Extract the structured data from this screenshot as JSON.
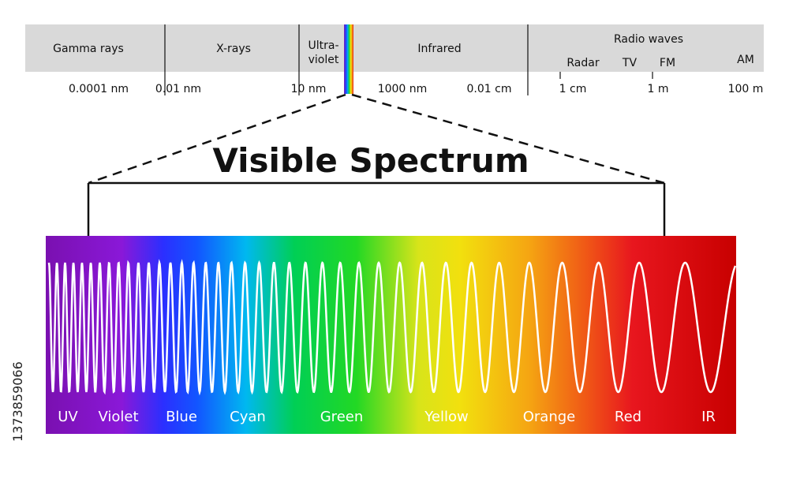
{
  "title": "Visible Spectrum",
  "side_id": "1373859066",
  "regions": [
    {
      "id": "gamma",
      "label": "Gamma rays"
    },
    {
      "id": "xray",
      "label": "X-rays"
    },
    {
      "id": "uv",
      "label_line1": "Ultra-",
      "label_line2": "violet"
    },
    {
      "id": "infrared",
      "label": "Infrared"
    },
    {
      "id": "radio",
      "label": "Radio waves"
    }
  ],
  "radio_sub": [
    "Radar",
    "TV",
    "FM",
    "AM"
  ],
  "wavelength_ticks": [
    "0.0001 nm",
    "0.01 nm",
    "10 nm",
    "1000 nm",
    "0.01 cm",
    "1 cm",
    "1 m",
    "100 m"
  ],
  "spectrum_labels": [
    "UV",
    "Violet",
    "Blue",
    "Cyan",
    "Green",
    "Yellow",
    "Orange",
    "Red",
    "IR"
  ],
  "colors": {
    "band_bg": "#d9d9d9",
    "violet": "#7a1fb6",
    "blue": "#1f3fff",
    "cyan": "#00b2ee",
    "green": "#19d12a",
    "yellow": "#f2e40f",
    "orange": "#f39c12",
    "red": "#e8161e",
    "dark_red": "#c80000",
    "wave": "#ffffff"
  }
}
